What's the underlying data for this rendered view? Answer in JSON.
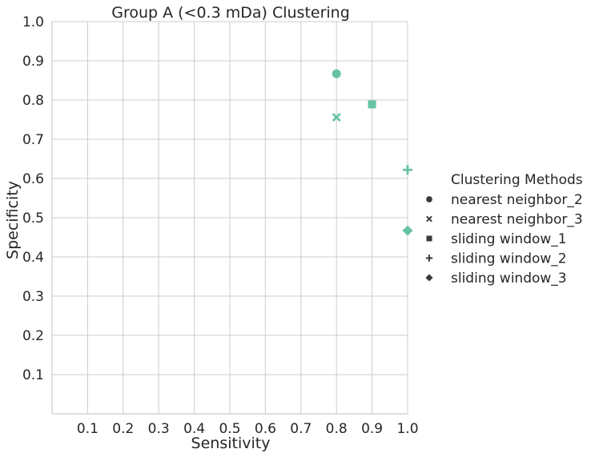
{
  "chart_data": {
    "type": "scatter",
    "title": "Group A (<0.3 mDa) Clustering",
    "xlabel": "Sensitivity",
    "ylabel": "Specificity",
    "xlim": [
      0.0,
      1.0
    ],
    "ylim": [
      0.0,
      1.0
    ],
    "x_ticks": [
      "0.1",
      "0.2",
      "0.3",
      "0.4",
      "0.5",
      "0.6",
      "0.7",
      "0.8",
      "0.9",
      "1.0"
    ],
    "y_ticks": [
      "0.1",
      "0.2",
      "0.3",
      "0.4",
      "0.5",
      "0.6",
      "0.7",
      "0.8",
      "0.9",
      "1.0"
    ],
    "grid": true,
    "marker_color": "#66c2a5",
    "legend": {
      "title": "Clustering Methods",
      "placement": "right"
    },
    "series": [
      {
        "name": "nearest neighbor_2",
        "marker": "circle",
        "points": [
          {
            "x": 0.8,
            "y": 0.867
          }
        ]
      },
      {
        "name": "nearest neighbor_3",
        "marker": "x",
        "points": [
          {
            "x": 0.8,
            "y": 0.756
          }
        ]
      },
      {
        "name": "sliding window_1",
        "marker": "square",
        "points": [
          {
            "x": 0.9,
            "y": 0.789
          }
        ]
      },
      {
        "name": "sliding window_2",
        "marker": "plus",
        "points": [
          {
            "x": 1.0,
            "y": 0.622
          }
        ]
      },
      {
        "name": "sliding window_3",
        "marker": "diamond",
        "points": [
          {
            "x": 1.0,
            "y": 0.467
          }
        ]
      }
    ]
  }
}
